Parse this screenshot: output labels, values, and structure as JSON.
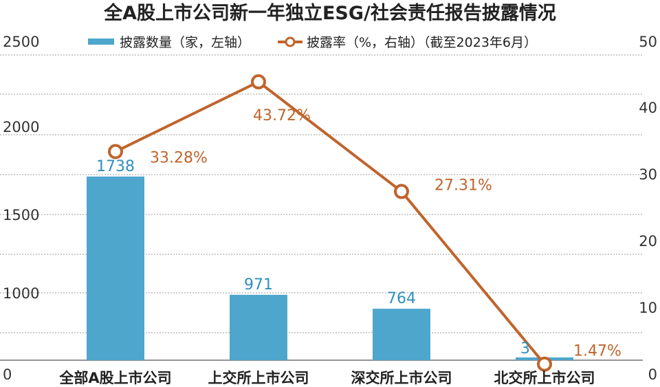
{
  "chart_data": {
    "type": "bar+line",
    "title": "全A股上市公司新一年独立ESG/社会责任报告披露情况",
    "categories": [
      "全部A股上市公司",
      "上交所上市公司",
      "深交所上市公司",
      "北交所上市公司"
    ],
    "series": [
      {
        "name": "披露数量（家，左轴）",
        "type": "bar",
        "axis": "left",
        "color": "#4ea6cc",
        "values": [
          1738,
          971,
          764,
          3
        ],
        "labels": [
          "1738",
          "971",
          "764",
          "3"
        ]
      },
      {
        "name": "披露率（%，右轴）",
        "type": "line",
        "axis": "right",
        "color": "#c0642c",
        "values": [
          33.28,
          43.72,
          27.31,
          1.47
        ],
        "labels": [
          "33.28%",
          "43.72%",
          "27.31%",
          "1.47%"
        ]
      }
    ],
    "legend_note": "（截至2023年6月）",
    "left_axis": {
      "ticks": [
        0,
        1000,
        1500,
        2000,
        2500
      ],
      "tick_labels": [
        "0",
        "1000",
        "1500",
        "2000",
        "2500"
      ]
    },
    "right_axis": {
      "ylim": [
        0,
        50
      ],
      "ticks": [
        0,
        10,
        20,
        30,
        40,
        50
      ],
      "tick_labels": [
        "0",
        "10",
        "20",
        "30",
        "40",
        "50"
      ]
    },
    "grid": "dashed horizontal",
    "legend_position": "top"
  }
}
